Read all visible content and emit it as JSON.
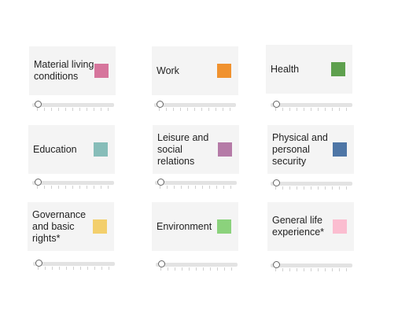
{
  "dimensions": [
    {
      "id": "material",
      "label": "Material living conditions",
      "color": "#d6759c",
      "value": 0
    },
    {
      "id": "work",
      "label": "Work",
      "color": "#f0922f",
      "value": 0
    },
    {
      "id": "health",
      "label": "Health",
      "color": "#5ea04e",
      "value": 0
    },
    {
      "id": "education",
      "label": "Education",
      "color": "#87bdb9",
      "value": 0
    },
    {
      "id": "leisure",
      "label": "Leisure and social relations",
      "color": "#b57ba7",
      "value": 0
    },
    {
      "id": "security",
      "label": "Physical and personal security",
      "color": "#4e76a6",
      "value": 0
    },
    {
      "id": "governance",
      "label": "Governance and basic rights*",
      "color": "#f3cf6c",
      "value": 0
    },
    {
      "id": "environment",
      "label": "Environment",
      "color": "#8bd27c",
      "value": 0
    },
    {
      "id": "general",
      "label": "General life experience*",
      "color": "#fbbdd0",
      "value": 0
    }
  ]
}
